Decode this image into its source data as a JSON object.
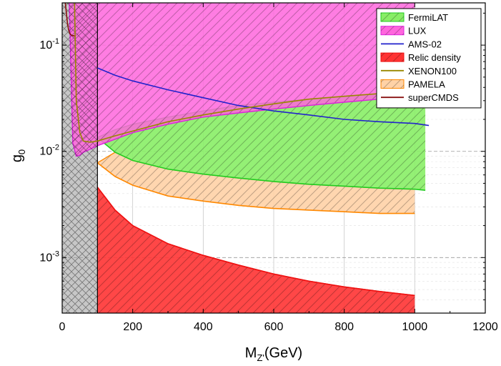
{
  "chart_data": {
    "type": "area",
    "xlabel": "M",
    "xlabel_sub": "Z'",
    "xlabel_suffix": "(GeV)",
    "ylabel": "g",
    "ylabel_sub": "0",
    "xlim": [
      0,
      1200
    ],
    "ylim": [
      0.0003,
      0.25
    ],
    "yscale": "log",
    "xticks": [
      0,
      200,
      400,
      600,
      800,
      1000,
      1200
    ],
    "yticks": [
      {
        "value": 0.001,
        "base": "10",
        "exp": "-3"
      },
      {
        "value": 0.01,
        "base": "10",
        "exp": "-2"
      },
      {
        "value": 0.1,
        "base": "10",
        "exp": "-1"
      }
    ],
    "legend_position": "top-right",
    "shaded_exclusion": {
      "x_range": [
        0,
        100
      ],
      "color": "#999999"
    },
    "series": [
      {
        "name": "FermiLAT",
        "kind": "band",
        "color": "#22cc22",
        "fill": "#88ee66",
        "hatch": true,
        "x": [
          100,
          150,
          200,
          300,
          400,
          500,
          600,
          700,
          800,
          900,
          1000,
          1030
        ],
        "lower": [
          0.0135,
          0.0098,
          0.0082,
          0.0068,
          0.0061,
          0.0056,
          0.0052,
          0.0049,
          0.0047,
          0.0045,
          0.0044,
          0.0043
        ],
        "upper": [
          0.0135,
          0.016,
          0.018,
          0.021,
          0.024,
          0.027,
          0.029,
          0.031,
          0.033,
          0.035,
          0.036,
          0.036
        ]
      },
      {
        "name": "LUX",
        "kind": "band",
        "color": "#dd22dd",
        "fill": "#ff66dd",
        "hatch": true,
        "x": [
          20,
          30,
          40,
          50,
          60,
          80,
          100,
          150,
          200,
          300,
          400,
          500,
          600,
          700,
          800,
          900,
          1000
        ],
        "lower": [
          0.25,
          0.012,
          0.009,
          0.0092,
          0.0098,
          0.0105,
          0.0113,
          0.013,
          0.015,
          0.018,
          0.021,
          0.023,
          0.025,
          0.027,
          0.029,
          0.031,
          0.033
        ],
        "upper": [
          0.25,
          0.25,
          0.25,
          0.25,
          0.25,
          0.25,
          0.25,
          0.25,
          0.25,
          0.25,
          0.25,
          0.25,
          0.25,
          0.25,
          0.25,
          0.25,
          0.25
        ]
      },
      {
        "name": "AMS-02",
        "kind": "line",
        "color": "#2222cc",
        "x": [
          100,
          150,
          200,
          300,
          400,
          500,
          600,
          700,
          800,
          900,
          1000,
          1040
        ],
        "y": [
          0.061,
          0.052,
          0.046,
          0.038,
          0.032,
          0.027,
          0.024,
          0.022,
          0.02,
          0.019,
          0.0183,
          0.0175
        ]
      },
      {
        "name": "Relic density",
        "kind": "band",
        "color": "#ee1111",
        "fill": "#ff3333",
        "hatch": true,
        "x": [
          100,
          150,
          200,
          300,
          400,
          500,
          600,
          700,
          800,
          900,
          1000
        ],
        "lower": [
          0.0003,
          0.0003,
          0.0003,
          0.0003,
          0.0003,
          0.0003,
          0.0003,
          0.0003,
          0.0003,
          0.0003,
          0.0003
        ],
        "upper": [
          0.0046,
          0.0028,
          0.002,
          0.00135,
          0.00105,
          0.00085,
          0.0007,
          0.0006,
          0.00053,
          0.00048,
          0.00044
        ]
      },
      {
        "name": "XENON100",
        "kind": "line",
        "color": "#998800",
        "x": [
          35,
          40,
          50,
          60,
          80,
          100,
          150,
          200,
          300,
          400,
          500,
          600,
          700,
          800,
          900,
          1000
        ],
        "y": [
          0.25,
          0.03,
          0.015,
          0.0125,
          0.0122,
          0.0125,
          0.014,
          0.0155,
          0.019,
          0.022,
          0.025,
          0.028,
          0.031,
          0.033,
          0.035,
          0.036
        ]
      },
      {
        "name": "PAMELA",
        "kind": "band",
        "color": "#ff8800",
        "fill": "#ffd2a6",
        "hatch": true,
        "x": [
          100,
          150,
          200,
          300,
          400,
          500,
          600,
          700,
          800,
          900,
          1000
        ],
        "lower": [
          0.0078,
          0.0058,
          0.0048,
          0.0038,
          0.0034,
          0.0031,
          0.0029,
          0.0028,
          0.0027,
          0.0026,
          0.0026
        ],
        "upper": [
          0.0078,
          0.0098,
          0.0082,
          0.0068,
          0.0061,
          0.0056,
          0.0052,
          0.0049,
          0.0047,
          0.0045,
          0.0044
        ]
      },
      {
        "name": "superCMDS",
        "kind": "line",
        "color": "#881111",
        "x": [
          9,
          12,
          15,
          18,
          22,
          26,
          30,
          35
        ],
        "y": [
          0.25,
          0.2,
          0.16,
          0.14,
          0.128,
          0.124,
          0.123,
          0.122
        ]
      }
    ]
  }
}
